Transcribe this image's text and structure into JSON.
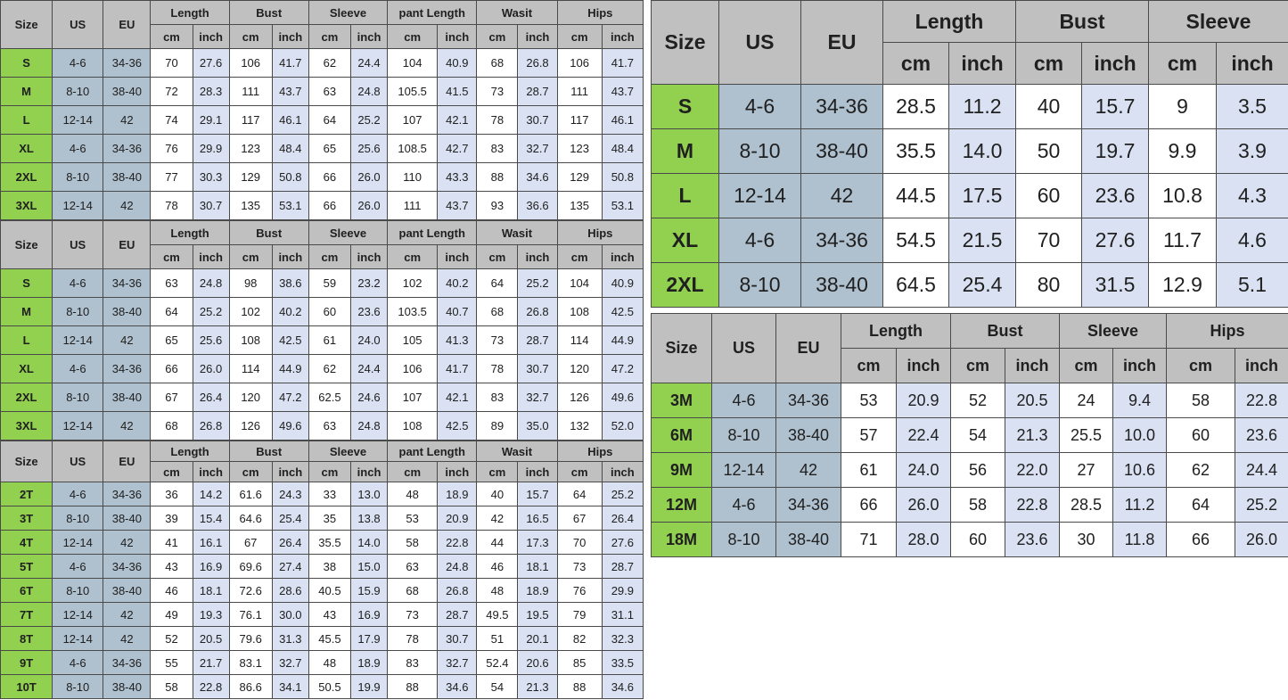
{
  "colors": {
    "header_bg": "#c0c0c0",
    "size_column_bg": "#92d050",
    "us_eu_column_bg": "#afc0ce",
    "cm_column_bg": "#ffffff",
    "inch_column_bg": "#d9e1f2",
    "border": "#4a4a4a",
    "text": "#202020"
  },
  "chart_data": [
    {
      "type": "table",
      "id": "womens-set-1",
      "base_headers": [
        "Size",
        "US",
        "EU"
      ],
      "groups": [
        "Length",
        "Bust",
        "Sleeve",
        "pant Length",
        "Wasit",
        "Hips"
      ],
      "units": [
        "cm",
        "inch"
      ],
      "rows": [
        {
          "size": "S",
          "us": "4-6",
          "eu": "34-36",
          "values": [
            "70",
            "27.6",
            "106",
            "41.7",
            "62",
            "24.4",
            "104",
            "40.9",
            "68",
            "26.8",
            "106",
            "41.7"
          ]
        },
        {
          "size": "M",
          "us": "8-10",
          "eu": "38-40",
          "values": [
            "72",
            "28.3",
            "111",
            "43.7",
            "63",
            "24.8",
            "105.5",
            "41.5",
            "73",
            "28.7",
            "111",
            "43.7"
          ]
        },
        {
          "size": "L",
          "us": "12-14",
          "eu": "42",
          "values": [
            "74",
            "29.1",
            "117",
            "46.1",
            "64",
            "25.2",
            "107",
            "42.1",
            "78",
            "30.7",
            "117",
            "46.1"
          ]
        },
        {
          "size": "XL",
          "us": "4-6",
          "eu": "34-36",
          "values": [
            "76",
            "29.9",
            "123",
            "48.4",
            "65",
            "25.6",
            "108.5",
            "42.7",
            "83",
            "32.7",
            "123",
            "48.4"
          ]
        },
        {
          "size": "2XL",
          "us": "8-10",
          "eu": "38-40",
          "values": [
            "77",
            "30.3",
            "129",
            "50.8",
            "66",
            "26.0",
            "110",
            "43.3",
            "88",
            "34.6",
            "129",
            "50.8"
          ]
        },
        {
          "size": "3XL",
          "us": "12-14",
          "eu": "42",
          "values": [
            "78",
            "30.7",
            "135",
            "53.1",
            "66",
            "26.0",
            "111",
            "43.7",
            "93",
            "36.6",
            "135",
            "53.1"
          ]
        }
      ]
    },
    {
      "type": "table",
      "id": "womens-set-2",
      "base_headers": [
        "Size",
        "US",
        "EU"
      ],
      "groups": [
        "Length",
        "Bust",
        "Sleeve",
        "pant Length",
        "Wasit",
        "Hips"
      ],
      "units": [
        "cm",
        "inch"
      ],
      "rows": [
        {
          "size": "S",
          "us": "4-6",
          "eu": "34-36",
          "values": [
            "63",
            "24.8",
            "98",
            "38.6",
            "59",
            "23.2",
            "102",
            "40.2",
            "64",
            "25.2",
            "104",
            "40.9"
          ]
        },
        {
          "size": "M",
          "us": "8-10",
          "eu": "38-40",
          "values": [
            "64",
            "25.2",
            "102",
            "40.2",
            "60",
            "23.6",
            "103.5",
            "40.7",
            "68",
            "26.8",
            "108",
            "42.5"
          ]
        },
        {
          "size": "L",
          "us": "12-14",
          "eu": "42",
          "values": [
            "65",
            "25.6",
            "108",
            "42.5",
            "61",
            "24.0",
            "105",
            "41.3",
            "73",
            "28.7",
            "114",
            "44.9"
          ]
        },
        {
          "size": "XL",
          "us": "4-6",
          "eu": "34-36",
          "values": [
            "66",
            "26.0",
            "114",
            "44.9",
            "62",
            "24.4",
            "106",
            "41.7",
            "78",
            "30.7",
            "120",
            "47.2"
          ]
        },
        {
          "size": "2XL",
          "us": "8-10",
          "eu": "38-40",
          "values": [
            "67",
            "26.4",
            "120",
            "47.2",
            "62.5",
            "24.6",
            "107",
            "42.1",
            "83",
            "32.7",
            "126",
            "49.6"
          ]
        },
        {
          "size": "3XL",
          "us": "12-14",
          "eu": "42",
          "values": [
            "68",
            "26.8",
            "126",
            "49.6",
            "63",
            "24.8",
            "108",
            "42.5",
            "89",
            "35.0",
            "132",
            "52.0"
          ]
        }
      ]
    },
    {
      "type": "table",
      "id": "toddler-2t-10t",
      "base_headers": [
        "Size",
        "US",
        "EU"
      ],
      "groups": [
        "Length",
        "Bust",
        "Sleeve",
        "pant Length",
        "Wasit",
        "Hips"
      ],
      "units": [
        "cm",
        "inch"
      ],
      "rows": [
        {
          "size": "2T",
          "us": "4-6",
          "eu": "34-36",
          "values": [
            "36",
            "14.2",
            "61.6",
            "24.3",
            "33",
            "13.0",
            "48",
            "18.9",
            "40",
            "15.7",
            "64",
            "25.2"
          ]
        },
        {
          "size": "3T",
          "us": "8-10",
          "eu": "38-40",
          "values": [
            "39",
            "15.4",
            "64.6",
            "25.4",
            "35",
            "13.8",
            "53",
            "20.9",
            "42",
            "16.5",
            "67",
            "26.4"
          ]
        },
        {
          "size": "4T",
          "us": "12-14",
          "eu": "42",
          "values": [
            "41",
            "16.1",
            "67",
            "26.4",
            "35.5",
            "14.0",
            "58",
            "22.8",
            "44",
            "17.3",
            "70",
            "27.6"
          ]
        },
        {
          "size": "5T",
          "us": "4-6",
          "eu": "34-36",
          "values": [
            "43",
            "16.9",
            "69.6",
            "27.4",
            "38",
            "15.0",
            "63",
            "24.8",
            "46",
            "18.1",
            "73",
            "28.7"
          ]
        },
        {
          "size": "6T",
          "us": "8-10",
          "eu": "38-40",
          "values": [
            "46",
            "18.1",
            "72.6",
            "28.6",
            "40.5",
            "15.9",
            "68",
            "26.8",
            "48",
            "18.9",
            "76",
            "29.9"
          ]
        },
        {
          "size": "7T",
          "us": "12-14",
          "eu": "42",
          "values": [
            "49",
            "19.3",
            "76.1",
            "30.0",
            "43",
            "16.9",
            "73",
            "28.7",
            "49.5",
            "19.5",
            "79",
            "31.1"
          ]
        },
        {
          "size": "8T",
          "us": "12-14",
          "eu": "42",
          "values": [
            "52",
            "20.5",
            "79.6",
            "31.3",
            "45.5",
            "17.9",
            "78",
            "30.7",
            "51",
            "20.1",
            "82",
            "32.3"
          ]
        },
        {
          "size": "9T",
          "us": "4-6",
          "eu": "34-36",
          "values": [
            "55",
            "21.7",
            "83.1",
            "32.7",
            "48",
            "18.9",
            "83",
            "32.7",
            "52.4",
            "20.6",
            "85",
            "33.5"
          ]
        },
        {
          "size": "10T",
          "us": "8-10",
          "eu": "38-40",
          "values": [
            "58",
            "22.8",
            "86.6",
            "34.1",
            "50.5",
            "19.9",
            "88",
            "34.6",
            "54",
            "21.3",
            "88",
            "34.6"
          ]
        }
      ]
    },
    {
      "type": "table",
      "id": "adult-top-s-2xl",
      "base_headers": [
        "Size",
        "US",
        "EU"
      ],
      "groups": [
        "Length",
        "Bust",
        "Sleeve"
      ],
      "units": [
        "cm",
        "inch"
      ],
      "rows": [
        {
          "size": "S",
          "us": "4-6",
          "eu": "34-36",
          "values": [
            "28.5",
            "11.2",
            "40",
            "15.7",
            "9",
            "3.5"
          ]
        },
        {
          "size": "M",
          "us": "8-10",
          "eu": "38-40",
          "values": [
            "35.5",
            "14.0",
            "50",
            "19.7",
            "9.9",
            "3.9"
          ]
        },
        {
          "size": "L",
          "us": "12-14",
          "eu": "42",
          "values": [
            "44.5",
            "17.5",
            "60",
            "23.6",
            "10.8",
            "4.3"
          ]
        },
        {
          "size": "XL",
          "us": "4-6",
          "eu": "34-36",
          "values": [
            "54.5",
            "21.5",
            "70",
            "27.6",
            "11.7",
            "4.6"
          ]
        },
        {
          "size": "2XL",
          "us": "8-10",
          "eu": "38-40",
          "values": [
            "64.5",
            "25.4",
            "80",
            "31.5",
            "12.9",
            "5.1"
          ]
        }
      ]
    },
    {
      "type": "table",
      "id": "baby-3m-18m",
      "base_headers": [
        "Size",
        "US",
        "EU"
      ],
      "groups": [
        "Length",
        "Bust",
        "Sleeve",
        "Hips"
      ],
      "units": [
        "cm",
        "inch"
      ],
      "rows": [
        {
          "size": "3M",
          "us": "4-6",
          "eu": "34-36",
          "values": [
            "53",
            "20.9",
            "52",
            "20.5",
            "24",
            "9.4",
            "58",
            "22.8"
          ]
        },
        {
          "size": "6M",
          "us": "8-10",
          "eu": "38-40",
          "values": [
            "57",
            "22.4",
            "54",
            "21.3",
            "25.5",
            "10.0",
            "60",
            "23.6"
          ]
        },
        {
          "size": "9M",
          "us": "12-14",
          "eu": "42",
          "values": [
            "61",
            "24.0",
            "56",
            "22.0",
            "27",
            "10.6",
            "62",
            "24.4"
          ]
        },
        {
          "size": "12M",
          "us": "4-6",
          "eu": "34-36",
          "values": [
            "66",
            "26.0",
            "58",
            "22.8",
            "28.5",
            "11.2",
            "64",
            "25.2"
          ]
        },
        {
          "size": "18M",
          "us": "8-10",
          "eu": "38-40",
          "values": [
            "71",
            "28.0",
            "60",
            "23.6",
            "30",
            "11.8",
            "66",
            "26.0"
          ]
        }
      ]
    }
  ]
}
